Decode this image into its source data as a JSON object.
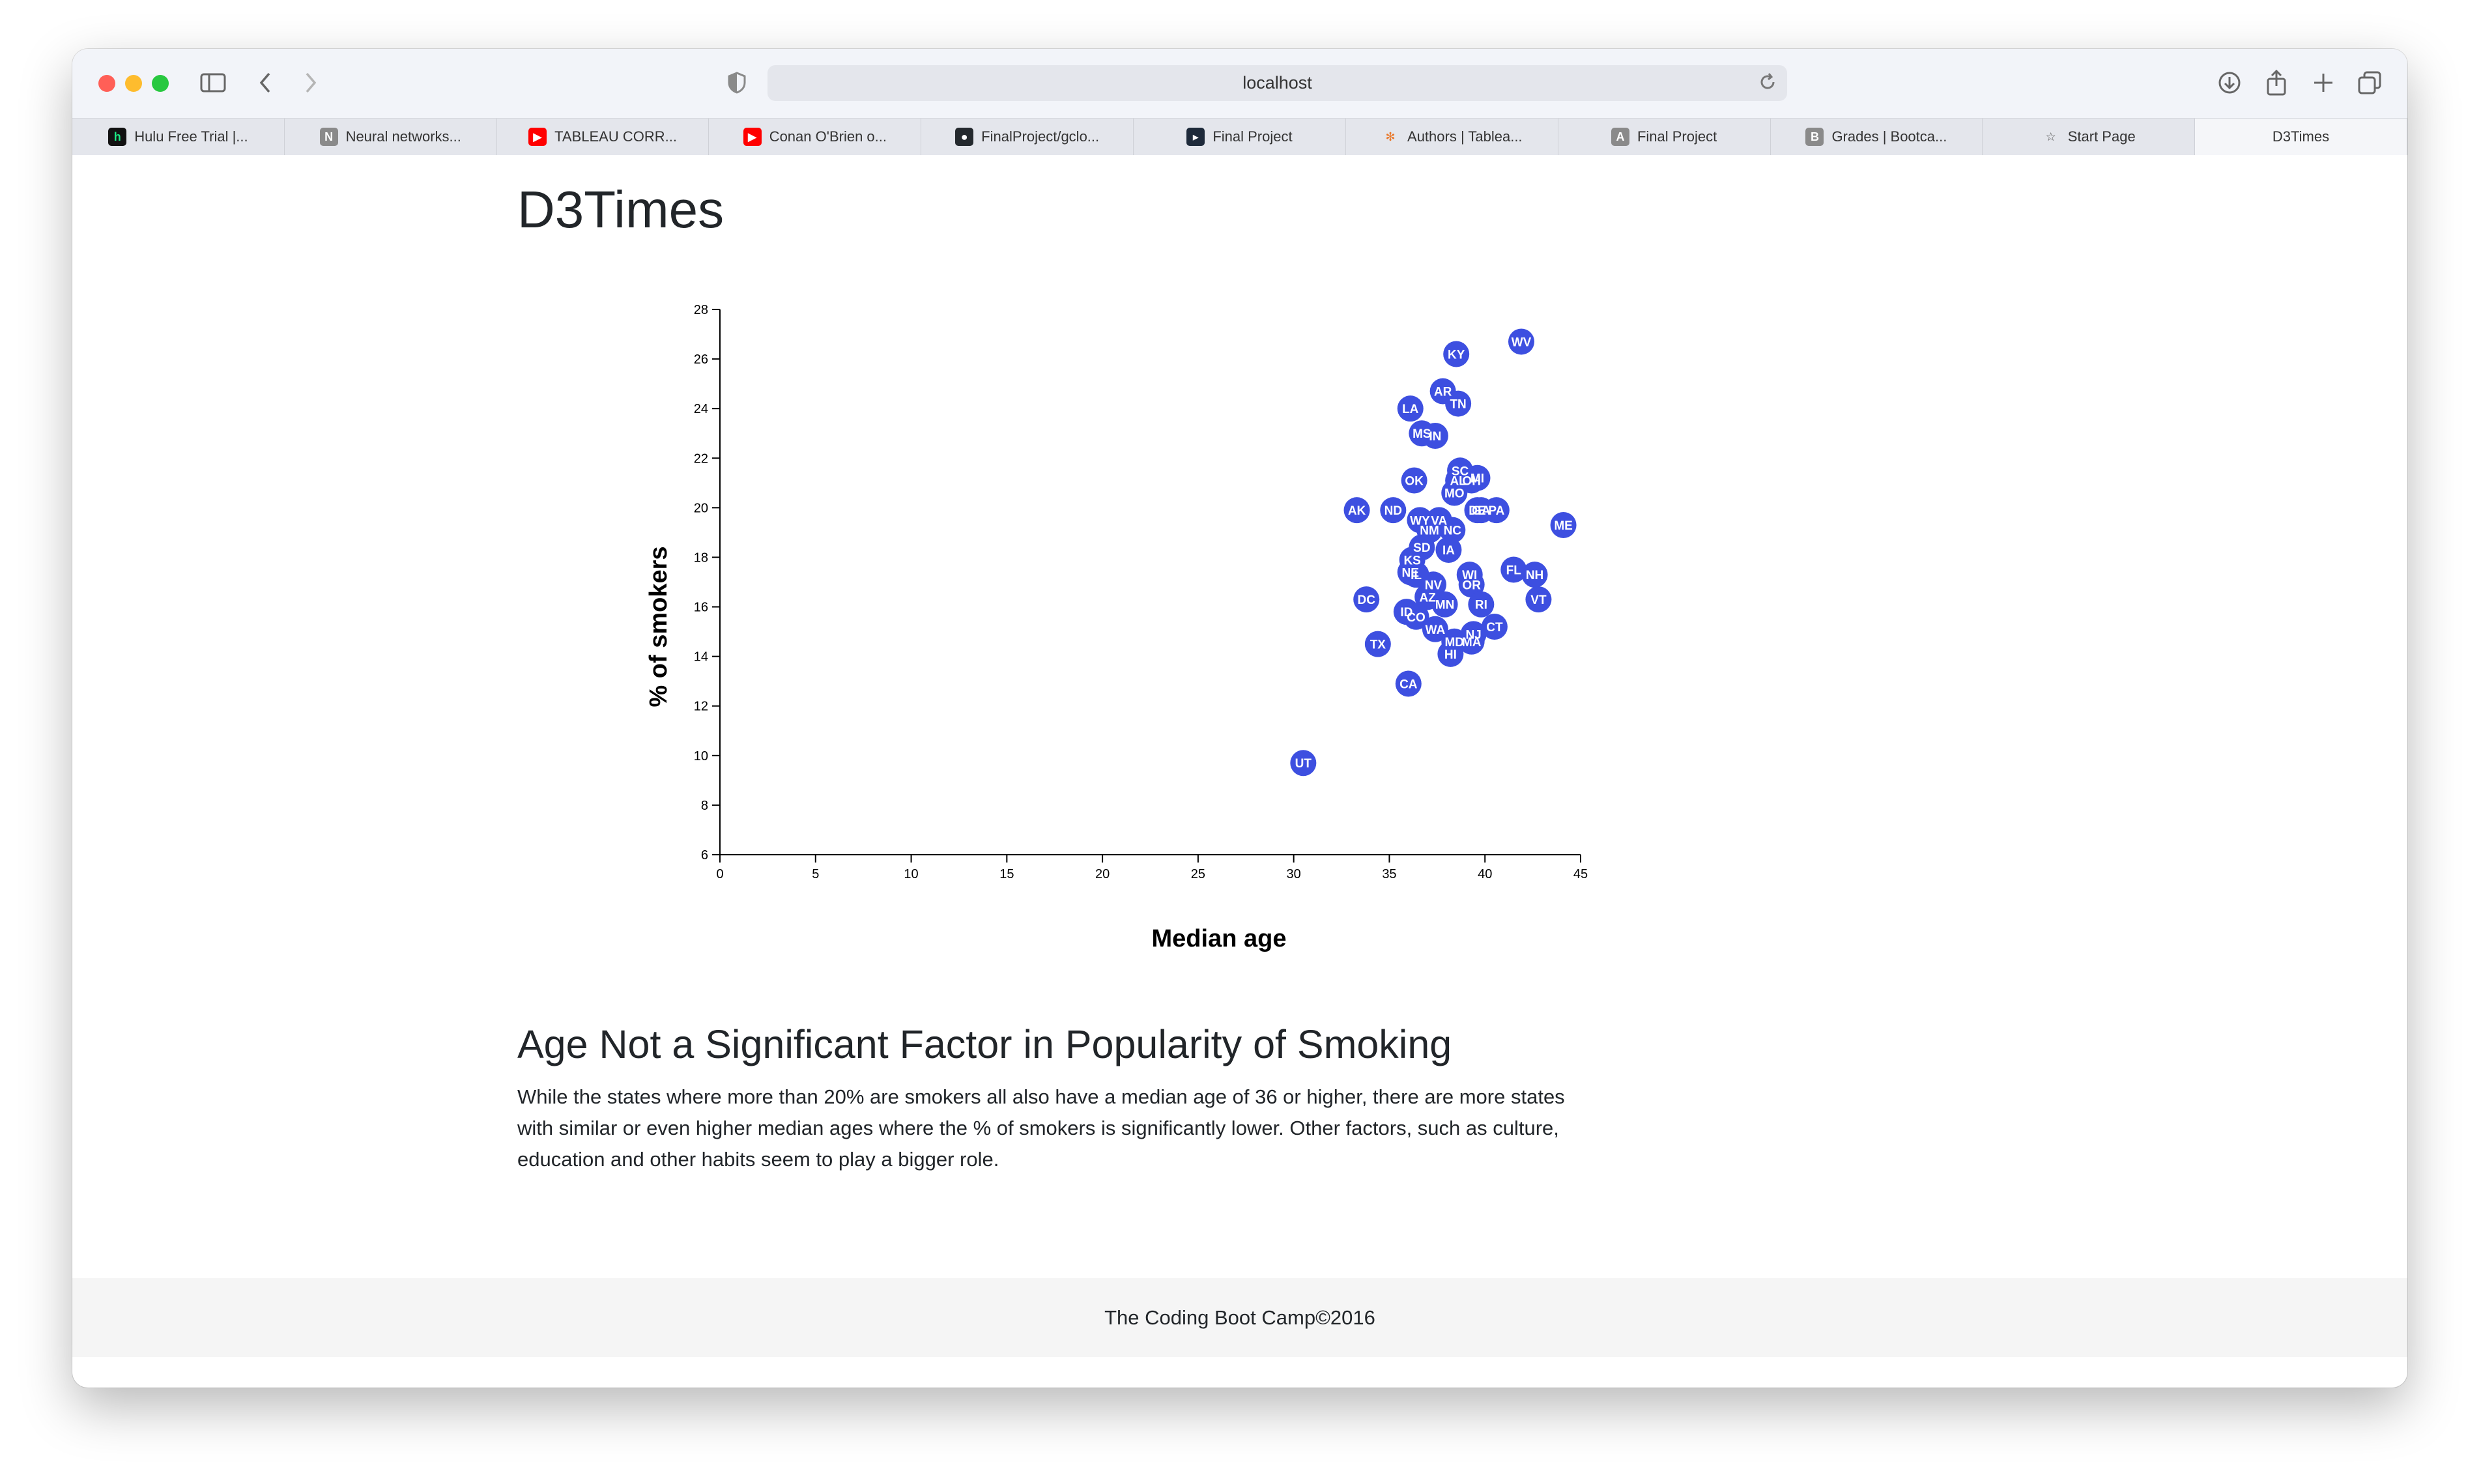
{
  "browser": {
    "url": "localhost",
    "tabs": [
      {
        "label": "Hulu Free Trial |...",
        "icon": "hulu-icon",
        "fav": "h",
        "color": "#1ce783",
        "bg": "#111111"
      },
      {
        "label": "Neural networks...",
        "icon": "notion-icon",
        "fav": "N",
        "color": "#ffffff",
        "bg": "#8a8a8a"
      },
      {
        "label": "TABLEAU CORR...",
        "icon": "youtube-icon",
        "fav": "▶",
        "color": "#ffffff",
        "bg": "#ff0000"
      },
      {
        "label": "Conan O'Brien o...",
        "icon": "youtube-icon",
        "fav": "▶",
        "color": "#ffffff",
        "bg": "#ff0000"
      },
      {
        "label": "FinalProject/gclo...",
        "icon": "github-icon",
        "fav": "●",
        "color": "#ffffff",
        "bg": "#24292e"
      },
      {
        "label": "Final Project",
        "icon": "terminal-icon",
        "fav": "▸",
        "color": "#ffffff",
        "bg": "#1e2a3a"
      },
      {
        "label": "Authors | Tablea...",
        "icon": "tableau-icon",
        "fav": "✻",
        "color": "#e97627",
        "bg": "transparent"
      },
      {
        "label": "Final Project",
        "icon": "app-a-icon",
        "fav": "A",
        "color": "#ffffff",
        "bg": "#8a8a8a"
      },
      {
        "label": "Grades | Bootca...",
        "icon": "bootcamp-icon",
        "fav": "B",
        "color": "#ffffff",
        "bg": "#8a8a8a"
      },
      {
        "label": "Start Page",
        "icon": "star-icon",
        "fav": "☆",
        "color": "#555555",
        "bg": "transparent"
      },
      {
        "label": "D3Times",
        "icon": "",
        "fav": "",
        "color": "",
        "bg": "",
        "active": true
      }
    ]
  },
  "page": {
    "title": "D3Times",
    "article_heading": "Age Not a Significant Factor in Popularity of Smoking",
    "article_body": "While the states where more than 20% are smokers all also have a median age of 36 or higher, there are more states with similar or even higher median ages where the % of smokers is significantly lower. Other factors, such as culture, education and other habits seem to play a bigger role.",
    "footer": "The Coding Boot Camp©2016"
  },
  "chart_data": {
    "type": "scatter",
    "xlabel": "Median age",
    "ylabel": "% of smokers",
    "xlim": [
      0,
      45
    ],
    "ylim": [
      6,
      28
    ],
    "xticks": [
      0,
      5,
      10,
      15,
      20,
      25,
      30,
      35,
      40,
      45
    ],
    "yticks": [
      6,
      8,
      10,
      12,
      14,
      16,
      18,
      20,
      22,
      24,
      26,
      28
    ],
    "marker_color": "#3d4fe0",
    "points": [
      {
        "label": "WV",
        "x": 41.9,
        "y": 26.7
      },
      {
        "label": "KY",
        "x": 38.5,
        "y": 26.2
      },
      {
        "label": "AR",
        "x": 37.8,
        "y": 24.7
      },
      {
        "label": "TN",
        "x": 38.6,
        "y": 24.2
      },
      {
        "label": "LA",
        "x": 36.1,
        "y": 24.0
      },
      {
        "label": "MS",
        "x": 36.7,
        "y": 23.0
      },
      {
        "label": "IN",
        "x": 37.4,
        "y": 22.9
      },
      {
        "label": "SC",
        "x": 38.7,
        "y": 21.5
      },
      {
        "label": "AL",
        "x": 38.6,
        "y": 21.1
      },
      {
        "label": "OH",
        "x": 39.3,
        "y": 21.1
      },
      {
        "label": "MI",
        "x": 39.6,
        "y": 21.2
      },
      {
        "label": "OK",
        "x": 36.3,
        "y": 21.1
      },
      {
        "label": "MO",
        "x": 38.4,
        "y": 20.6
      },
      {
        "label": "AK",
        "x": 33.3,
        "y": 19.9
      },
      {
        "label": "ND",
        "x": 35.2,
        "y": 19.9
      },
      {
        "label": "DE",
        "x": 39.6,
        "y": 19.9
      },
      {
        "label": "GA",
        "x": 39.8,
        "y": 19.9
      },
      {
        "label": "PA",
        "x": 40.6,
        "y": 19.9
      },
      {
        "label": "ME",
        "x": 44.1,
        "y": 19.3
      },
      {
        "label": "WY",
        "x": 36.6,
        "y": 19.5
      },
      {
        "label": "VA",
        "x": 37.6,
        "y": 19.5
      },
      {
        "label": "NM",
        "x": 37.1,
        "y": 19.1
      },
      {
        "label": "NC",
        "x": 38.3,
        "y": 19.1
      },
      {
        "label": "SD",
        "x": 36.7,
        "y": 18.4
      },
      {
        "label": "IA",
        "x": 38.1,
        "y": 18.3
      },
      {
        "label": "KS",
        "x": 36.2,
        "y": 17.9
      },
      {
        "label": "FL",
        "x": 41.5,
        "y": 17.5
      },
      {
        "label": "NH",
        "x": 42.6,
        "y": 17.3
      },
      {
        "label": "WI",
        "x": 39.2,
        "y": 17.3
      },
      {
        "label": "OR",
        "x": 39.3,
        "y": 16.9
      },
      {
        "label": "NE",
        "x": 36.1,
        "y": 17.4
      },
      {
        "label": "IL",
        "x": 36.4,
        "y": 17.3
      },
      {
        "label": "NV",
        "x": 37.3,
        "y": 16.9
      },
      {
        "label": "AZ",
        "x": 37.0,
        "y": 16.4
      },
      {
        "label": "MN",
        "x": 37.9,
        "y": 16.1
      },
      {
        "label": "RI",
        "x": 39.8,
        "y": 16.1
      },
      {
        "label": "VT",
        "x": 42.8,
        "y": 16.3
      },
      {
        "label": "DC",
        "x": 33.8,
        "y": 16.3
      },
      {
        "label": "ID",
        "x": 35.9,
        "y": 15.8
      },
      {
        "label": "CO",
        "x": 36.4,
        "y": 15.6
      },
      {
        "label": "WA",
        "x": 37.4,
        "y": 15.1
      },
      {
        "label": "CT",
        "x": 40.5,
        "y": 15.2
      },
      {
        "label": "NJ",
        "x": 39.4,
        "y": 14.9
      },
      {
        "label": "MD",
        "x": 38.4,
        "y": 14.6
      },
      {
        "label": "MA",
        "x": 39.3,
        "y": 14.6
      },
      {
        "label": "HI",
        "x": 38.2,
        "y": 14.1
      },
      {
        "label": "TX",
        "x": 34.4,
        "y": 14.5
      },
      {
        "label": "CA",
        "x": 36.0,
        "y": 12.9
      },
      {
        "label": "UT",
        "x": 30.5,
        "y": 9.7
      }
    ]
  }
}
